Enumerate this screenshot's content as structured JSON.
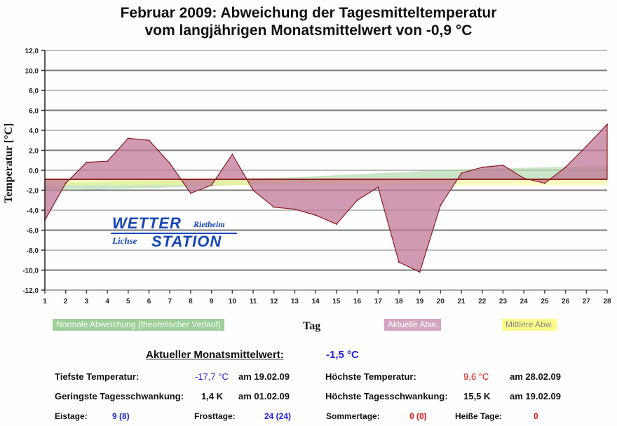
{
  "chart_data": {
    "type": "area",
    "title": "Februar 2009: Abweichung der Tagesmitteltemperatur",
    "subtitle": "vom langjährigen Monatsmittelwert von -0,9 °C",
    "xlabel": "Tag",
    "ylabel": "Temperatur [°C]",
    "ylim": [
      -12,
      12
    ],
    "xlim": [
      1,
      28
    ],
    "grid": true,
    "y_ticks": [
      "12,0",
      "10,0",
      "8,0",
      "6,0",
      "4,0",
      "2,0",
      "0,0",
      "-2,0",
      "-4,0",
      "-6,0",
      "-8,0",
      "-10,0",
      "-12,0"
    ],
    "y_tick_values": [
      12,
      10,
      8,
      6,
      4,
      2,
      0,
      -2,
      -4,
      -6,
      -8,
      -10,
      -12
    ],
    "x": [
      1,
      2,
      3,
      4,
      5,
      6,
      7,
      8,
      9,
      10,
      11,
      12,
      13,
      14,
      15,
      16,
      17,
      18,
      19,
      20,
      21,
      22,
      23,
      24,
      25,
      26,
      27,
      28
    ],
    "x_ticks": [
      "1",
      "2",
      "3",
      "4",
      "5",
      "6",
      "7",
      "8",
      "9",
      "10",
      "11",
      "12",
      "13",
      "14",
      "15",
      "16",
      "17",
      "18",
      "19",
      "20",
      "21",
      "22",
      "23",
      "24",
      "25",
      "26",
      "27",
      "28"
    ],
    "legend_position": "bottom",
    "series": [
      {
        "name": "Normale Abweichung (theoretischer Verlauf)",
        "color": "#9ecf9a",
        "upper": [
          -1.3,
          -1.25,
          -1.2,
          -1.15,
          -1.1,
          -1.05,
          -1.0,
          -0.95,
          -0.9,
          -0.85,
          -0.8,
          -0.75,
          -0.7,
          -0.6,
          -0.5,
          -0.4,
          -0.3,
          -0.2,
          -0.1,
          0.0,
          0.1,
          0.15,
          0.2,
          0.25,
          0.3,
          0.35,
          0.4,
          0.5
        ],
        "lower": [
          -2.1,
          -2.0,
          -1.95,
          -1.9,
          -1.85,
          -1.8,
          -1.7,
          -1.65,
          -1.6,
          -1.5,
          -1.45,
          -1.4,
          -1.3,
          -1.25,
          -1.2,
          -1.1,
          -1.05,
          -1.0,
          -0.95,
          -0.9,
          -0.9,
          -0.9,
          -0.9,
          -0.9,
          -0.9,
          -0.9,
          -0.9,
          -0.9
        ]
      },
      {
        "name": "Aktuelle Abw.",
        "color": "#c07898",
        "values": [
          -5.0,
          -1.3,
          0.8,
          0.9,
          3.2,
          3.0,
          0.7,
          -2.3,
          -1.5,
          1.6,
          -2.0,
          -3.7,
          -3.9,
          -4.5,
          -5.4,
          -3.0,
          -1.7,
          -9.2,
          -10.2,
          -3.5,
          -0.3,
          0.3,
          0.5,
          -0.8,
          -1.3,
          0.3,
          2.4,
          4.6
        ]
      },
      {
        "name": "Mittlere Abw.",
        "color": "#fbfb8a",
        "value": -0.9,
        "band_lower": -1.5
      }
    ],
    "baseline": -0.9
  },
  "legend": {
    "normal": "Normale Abweichung (theoretischer Verlauf)",
    "actual": "Aktuelle Abw.",
    "mean": "Mittlere Abw."
  },
  "logo": {
    "line1": "WETTER",
    "line1_small": "Rietheim",
    "line2_small": "Lichse",
    "line2": "STATION"
  },
  "stats": {
    "mean_label": "Aktueller Monatsmittelwert:",
    "mean_value": "-1,5 °C",
    "min_label": "Tiefste Temperatur:",
    "min_value": "-17,7 °C",
    "min_date": "am 19.02.09",
    "max_label": "Höchste Temperatur:",
    "max_value": "9,6 °C",
    "max_date": "am 28.02.09",
    "min_range_label": "Geringste Tagesschwankung:",
    "min_range_value": "1,4 K",
    "min_range_date": "am 01.02.09",
    "max_range_label": "Höchste Tagesschwankung:",
    "max_range_value": "15,5 K",
    "max_range_date": "am 19.02.09",
    "ice_label": "Eistage:",
    "ice_value": "9 (8)",
    "frost_label": "Frosttage:",
    "frost_value": "24 (24)",
    "summer_label": "Sommertage:",
    "summer_value": "0 (0)",
    "hot_label": "Heiße Tage:",
    "hot_value": "0"
  }
}
